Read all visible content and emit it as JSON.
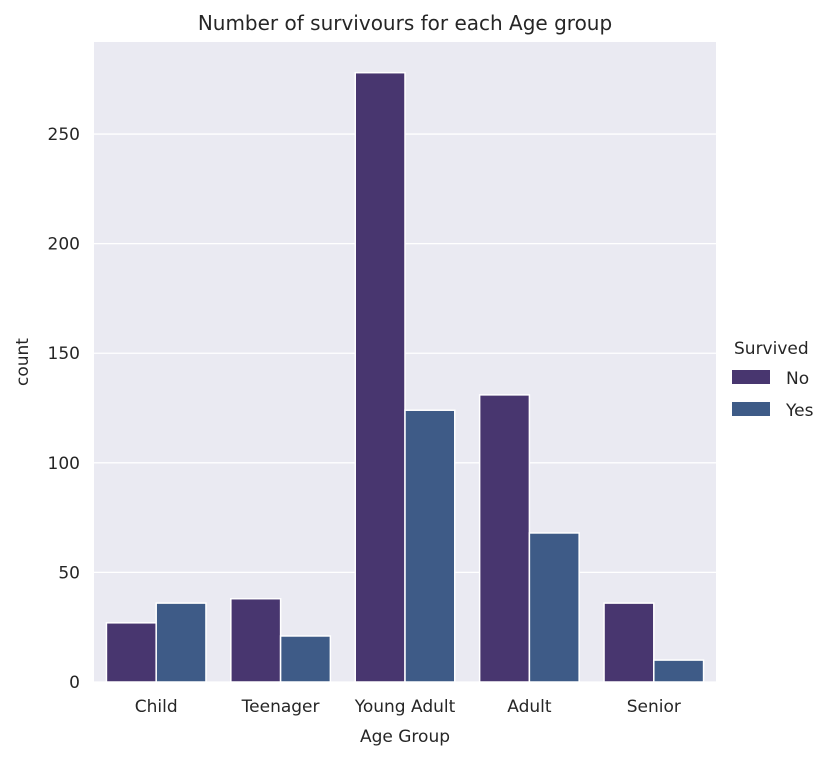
{
  "chart_data": {
    "type": "bar",
    "title": "Number of survivours for each Age group",
    "xlabel": "Age Group",
    "ylabel": "count",
    "categories": [
      "Child",
      "Teenager",
      "Young Adult",
      "Adult",
      "Senior"
    ],
    "series": [
      {
        "name": "No",
        "values": [
          27,
          38,
          278,
          131,
          36
        ]
      },
      {
        "name": "Yes",
        "values": [
          36,
          21,
          124,
          68,
          10
        ]
      }
    ],
    "ylim": [
      0,
      292
    ],
    "yticks": [
      0,
      50,
      100,
      150,
      200,
      250
    ],
    "legend": {
      "title": "Survived",
      "placement": "right"
    },
    "grid": true,
    "colors": {
      "No": "#48366f",
      "Yes": "#3e5b87",
      "plot_background": "#eaeaf2",
      "grid": "#ffffff"
    }
  }
}
